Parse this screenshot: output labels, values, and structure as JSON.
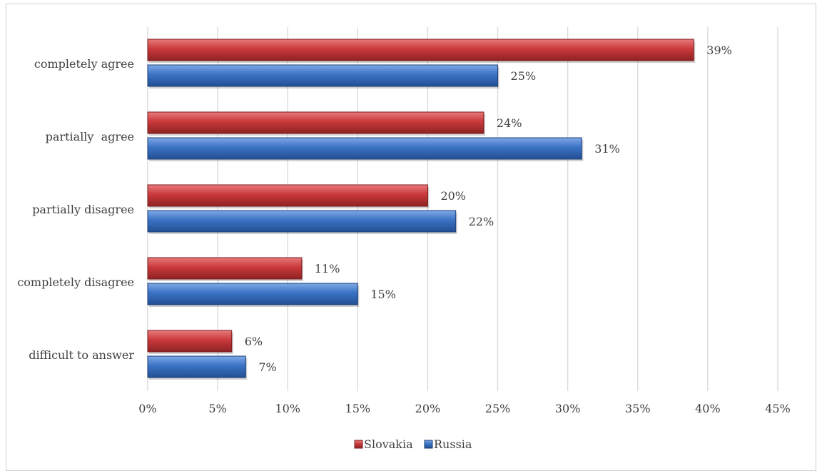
{
  "chart_data": {
    "type": "bar",
    "orientation": "horizontal",
    "categories": [
      "completely agree",
      "partially  agree",
      "partially disagree",
      "completely disagree",
      "difficult to answer"
    ],
    "series": [
      {
        "name": "Slovakia",
        "color": "#c0393b",
        "values": [
          39,
          24,
          20,
          11,
          6
        ],
        "labels": [
          "39%",
          "24%",
          "20%",
          "11%",
          "6%"
        ]
      },
      {
        "name": "Russia",
        "color": "#3a72c4",
        "values": [
          25,
          31,
          22,
          15,
          7
        ],
        "labels": [
          "25%",
          "31%",
          "22%",
          "15%",
          "7%"
        ]
      }
    ],
    "xlim": [
      0,
      45
    ],
    "x_ticks": [
      0,
      5,
      10,
      15,
      20,
      25,
      30,
      35,
      40,
      45
    ],
    "x_tick_labels": [
      "0%",
      "5%",
      "10%",
      "15%",
      "20%",
      "25%",
      "30%",
      "35%",
      "40%",
      "45%"
    ],
    "grid": "vertical",
    "legend": "bottom-center",
    "title": "",
    "xlabel": "",
    "ylabel": ""
  }
}
